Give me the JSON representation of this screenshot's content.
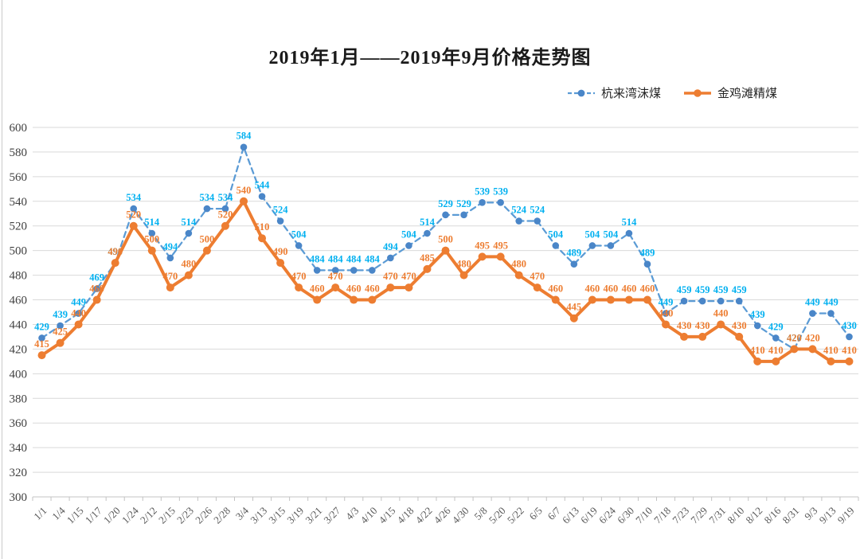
{
  "chart_data": {
    "type": "line",
    "title": "2019年1月——2019年9月价格走势图",
    "xlabel": "",
    "ylabel": "",
    "grid": true,
    "legend_position": "top-right",
    "data_labels": true,
    "y_axis": {
      "min": 300,
      "max": 600,
      "step": 20
    },
    "categories": [
      "1/1",
      "1/4",
      "1/15",
      "1/17",
      "1/20",
      "1/24",
      "2/12",
      "2/15",
      "2/23",
      "2/26",
      "2/28",
      "3/4",
      "3/13",
      "3/15",
      "3/19",
      "3/21",
      "3/27",
      "4/3",
      "4/10",
      "4/15",
      "4/18",
      "4/22",
      "4/26",
      "4/30",
      "5/8",
      "5/20",
      "5/22",
      "6/5",
      "6/7",
      "6/13",
      "6/19",
      "6/24",
      "6/30",
      "7/10",
      "7/18",
      "7/23",
      "7/29",
      "7/31",
      "8/10",
      "8/12",
      "8/16",
      "8/31",
      "9/3",
      "9/13",
      "9/19"
    ],
    "series": [
      {
        "name": "杭来湾沫煤",
        "style": "dashed",
        "line_color": "#5B9BD5",
        "marker_color": "#4A86C8",
        "label_color": "#00B0F0",
        "values": [
          429,
          439,
          449,
          469,
          490,
          534,
          514,
          494,
          514,
          534,
          534,
          584,
          544,
          524,
          504,
          484,
          484,
          484,
          484,
          494,
          504,
          514,
          529,
          529,
          539,
          539,
          524,
          524,
          504,
          489,
          504,
          504,
          514,
          489,
          449,
          459,
          459,
          459,
          459,
          439,
          429,
          420,
          449,
          449,
          430
        ]
      },
      {
        "name": "金鸡滩精煤",
        "style": "solid",
        "line_color": "#ED7D31",
        "marker_color": "#ED7D31",
        "label_color": "#ED7D31",
        "values": [
          415,
          425,
          440,
          460,
          490,
          520,
          500,
          470,
          480,
          500,
          520,
          540,
          510,
          490,
          470,
          460,
          470,
          460,
          460,
          470,
          470,
          485,
          500,
          480,
          495,
          495,
          480,
          470,
          460,
          445,
          460,
          460,
          460,
          460,
          440,
          430,
          430,
          440,
          430,
          410,
          410,
          420,
          420,
          410,
          410
        ]
      }
    ],
    "colors": {
      "grid": "#D9D9D9",
      "axis": "#C3C3C3",
      "y_tick_text": "#404040",
      "x_tick_text": "#595959"
    }
  }
}
